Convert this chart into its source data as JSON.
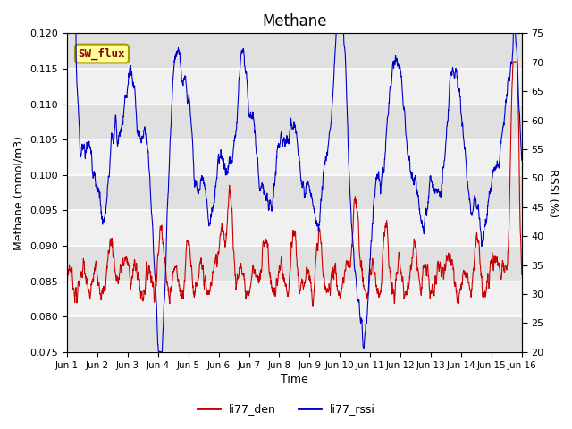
{
  "title": "Methane",
  "xlabel": "Time",
  "ylabel_left": "Methane (mmol/m3)",
  "ylabel_right": "RSSI (%)",
  "ylim_left": [
    0.075,
    0.12
  ],
  "ylim_right": [
    20,
    75
  ],
  "yticks_left": [
    0.075,
    0.08,
    0.085,
    0.09,
    0.095,
    0.1,
    0.105,
    0.11,
    0.115,
    0.12
  ],
  "yticks_right": [
    20,
    25,
    30,
    35,
    40,
    45,
    50,
    55,
    60,
    65,
    70,
    75
  ],
  "xtick_labels": [
    "Jun 1",
    "Jun 2",
    "Jun 3",
    "Jun 4",
    "Jun 5",
    "Jun 6",
    "Jun 7",
    "Jun 8",
    "Jun 9",
    "Jun 10",
    "Jun 11",
    "Jun 12",
    "Jun 13",
    "Jun 14",
    "Jun 15",
    "Jun 16"
  ],
  "color_red": "#cc0000",
  "color_blue": "#0000cc",
  "background_color": "#ffffff",
  "plot_bg_light": "#f0f0f0",
  "plot_bg_dark": "#e0e0e0",
  "grid_color": "#ffffff",
  "annotation_text": "SW_flux",
  "annotation_bg": "#ffff99",
  "annotation_border": "#999900",
  "legend_entries": [
    "li77_den",
    "li77_rssi"
  ],
  "n_points": 2000,
  "days": 15
}
